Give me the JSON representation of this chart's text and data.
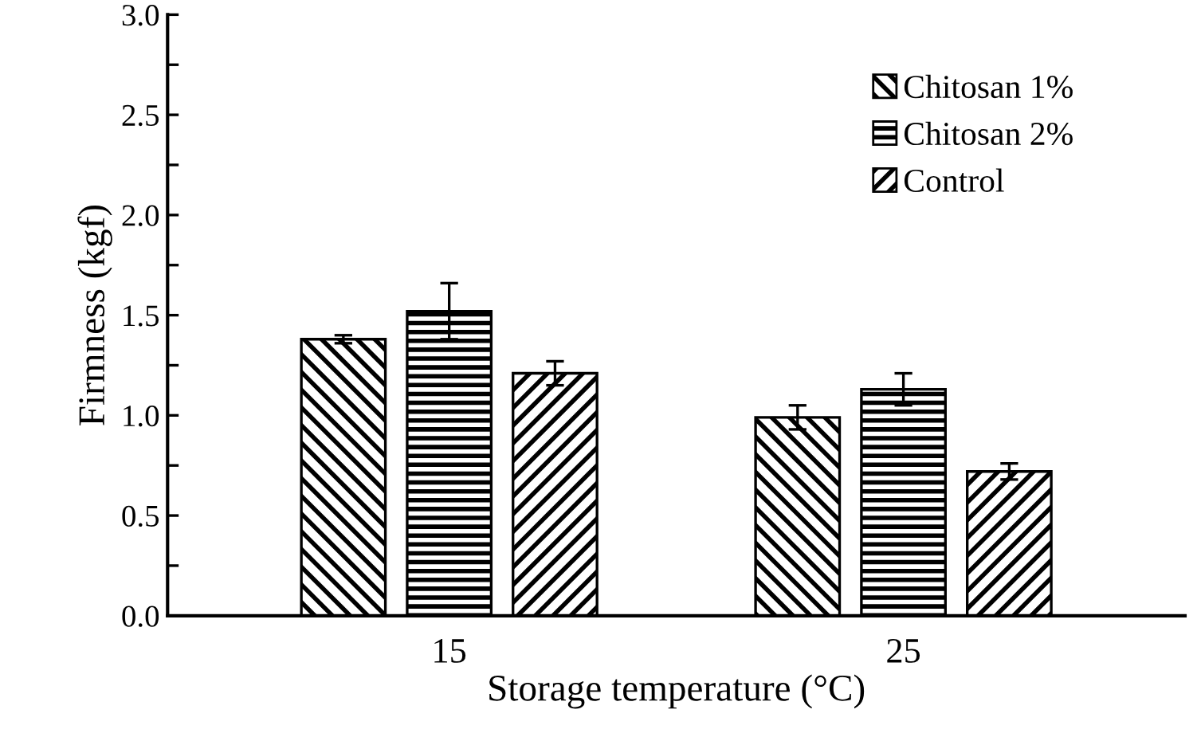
{
  "chart_data": {
    "type": "bar",
    "xlabel": "Storage temperature (°C)",
    "ylabel": "Firmness (kgf)",
    "categories": [
      "15",
      "25"
    ],
    "series": [
      {
        "name": "Chitosan 1%",
        "color": "#000000",
        "values": [
          1.38,
          0.99
        ],
        "errors": [
          0.02,
          0.06
        ]
      },
      {
        "name": "Chitosan 2%",
        "color": "#000000",
        "values": [
          1.52,
          1.13
        ],
        "errors": [
          0.14,
          0.08
        ]
      },
      {
        "name": "Control",
        "color": "#000000",
        "values": [
          1.21,
          0.72
        ],
        "errors": [
          0.06,
          0.04
        ]
      }
    ],
    "ylim": [
      0,
      3
    ],
    "yticks": [
      {
        "value": 0,
        "label": "0.0"
      },
      {
        "value": 0.25,
        "label": null
      },
      {
        "value": 0.5,
        "label": "0.5"
      },
      {
        "value": 0.75,
        "label": null
      },
      {
        "value": 1,
        "label": "1.0"
      },
      {
        "value": 1.25,
        "label": null
      },
      {
        "value": 1.5,
        "label": "1.5"
      },
      {
        "value": 1.75,
        "label": null
      },
      {
        "value": 2,
        "label": "2.0"
      },
      {
        "value": 2.25,
        "label": null
      },
      {
        "value": 2.5,
        "label": "2.5"
      },
      {
        "value": 2.75,
        "label": null
      },
      {
        "value": 3,
        "label": "3.0"
      }
    ],
    "grid": false,
    "legend": "top right"
  }
}
